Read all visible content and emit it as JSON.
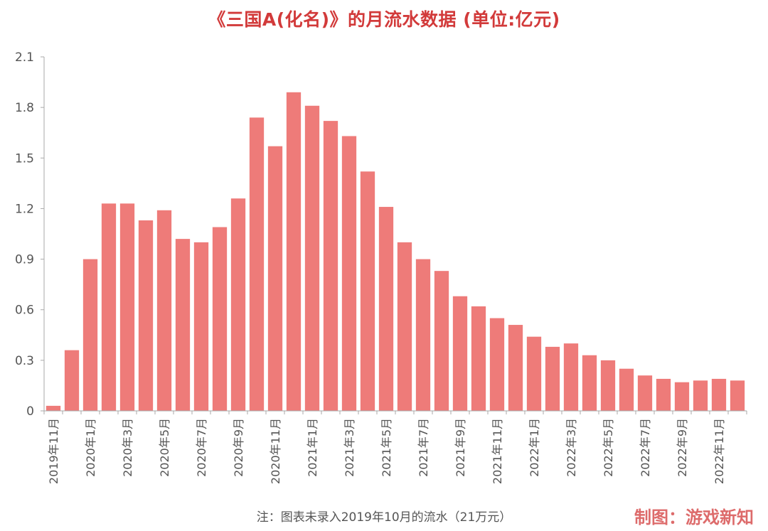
{
  "colors": {
    "bar": "#ee7b79",
    "title": "#d23a3a",
    "axis": "#aaaaaa",
    "tick_text": "#555555"
  },
  "watermark": "制图：游戏新知",
  "chart_data": {
    "type": "bar",
    "title": "《三国A(化名)》的月流水数据 (单位:亿元)",
    "note": "注：图表未录入2019年10月的流水（21万元）",
    "ylim": [
      0,
      2.1
    ],
    "yticks": [
      "0",
      "0.3",
      "0.6",
      "0.9",
      "1.2",
      "1.5",
      "1.8",
      "2.1"
    ],
    "grid": false,
    "categories": [
      "2019年11月",
      "2019年12月",
      "2020年1月",
      "2020年2月",
      "2020年3月",
      "2020年4月",
      "2020年5月",
      "2020年6月",
      "2020年7月",
      "2020年8月",
      "2020年9月",
      "2020年10月",
      "2020年11月",
      "2020年12月",
      "2021年1月",
      "2021年2月",
      "2021年3月",
      "2021年4月",
      "2021年5月",
      "2021年6月",
      "2021年7月",
      "2021年8月",
      "2021年9月",
      "2021年10月",
      "2021年11月",
      "2021年12月",
      "2022年1月",
      "2022年2月",
      "2022年3月",
      "2022年4月",
      "2022年5月",
      "2022年6月",
      "2022年7月",
      "2022年8月",
      "2022年9月",
      "2022年10月",
      "2022年11月",
      "2022年12月"
    ],
    "tick_labels": [
      "2019年11月",
      "",
      "2020年1月",
      "",
      "2020年3月",
      "",
      "2020年5月",
      "",
      "2020年7月",
      "",
      "2020年9月",
      "",
      "2020年11月",
      "",
      "2021年1月",
      "",
      "2021年3月",
      "",
      "2021年5月",
      "",
      "2021年7月",
      "",
      "2021年9月",
      "",
      "2021年11月",
      "",
      "2022年1月",
      "",
      "2022年3月",
      "",
      "2022年5月",
      "",
      "2022年7月",
      "",
      "2022年9月",
      "",
      "2022年11月",
      ""
    ],
    "values": [
      0.03,
      0.36,
      0.9,
      1.23,
      1.23,
      1.13,
      1.19,
      1.02,
      1.0,
      1.09,
      1.26,
      1.74,
      1.57,
      1.89,
      1.81,
      1.72,
      1.63,
      1.42,
      1.21,
      1.0,
      0.9,
      0.83,
      0.68,
      0.62,
      0.55,
      0.51,
      0.44,
      0.38,
      0.4,
      0.33,
      0.3,
      0.25,
      0.21,
      0.19,
      0.17,
      0.18,
      0.19,
      0.18
    ]
  }
}
